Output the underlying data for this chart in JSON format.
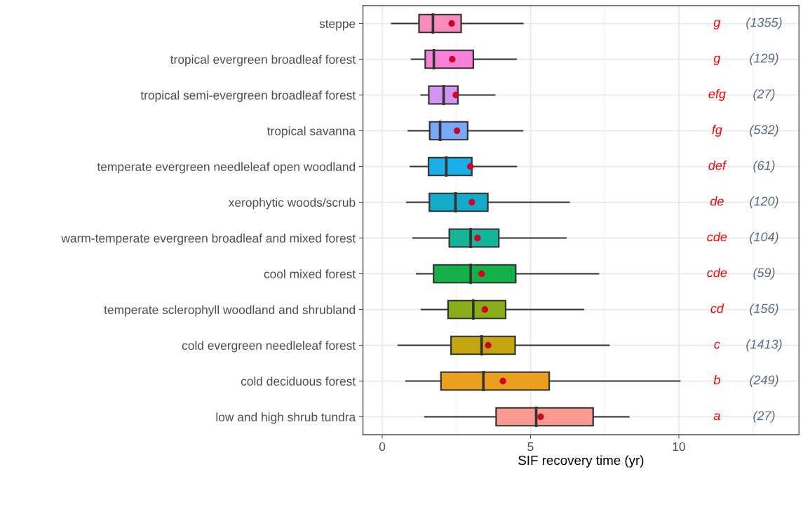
{
  "chart_data": {
    "type": "box",
    "orientation": "horizontal",
    "xlabel": "SIF recovery time (yr)",
    "categories": [
      "steppe",
      "tropical evergreen broadleaf forest",
      "tropical semi-evergreen broadleaf forest",
      "tropical savanna",
      "temperate evergreen needleleaf open woodland",
      "xerophytic woods/scrub",
      "warm-temperate evergreen broadleaf and mixed forest",
      "cool mixed forest",
      "temperate sclerophyll woodland and shrubland",
      "cold evergreen needleleaf forest",
      "cold deciduous forest",
      "low and high shrub tundra"
    ],
    "colors": [
      "#f98cbf",
      "#f681d6",
      "#d393f0",
      "#77a8fa",
      "#1aaee8",
      "#14abc9",
      "#14b498",
      "#13b04a",
      "#8aae1a",
      "#c4a512",
      "#eb9f1f",
      "#fb9a8f"
    ],
    "boxes": [
      {
        "low": 0.32,
        "q1": 1.24,
        "median": 1.71,
        "q3": 2.66,
        "high": 4.74,
        "mean": 2.34
      },
      {
        "low": 0.99,
        "q1": 1.45,
        "median": 1.74,
        "q3": 3.07,
        "high": 4.51,
        "mean": 2.36
      },
      {
        "low": 1.31,
        "q1": 1.57,
        "median": 2.07,
        "q3": 2.55,
        "high": 3.79,
        "mean": 2.48
      },
      {
        "low": 0.88,
        "q1": 1.6,
        "median": 1.95,
        "q3": 2.88,
        "high": 4.73,
        "mean": 2.52
      },
      {
        "low": 0.95,
        "q1": 1.56,
        "median": 2.16,
        "q3": 3.02,
        "high": 4.52,
        "mean": 2.97
      },
      {
        "low": 0.83,
        "q1": 1.59,
        "median": 2.47,
        "q3": 3.56,
        "high": 6.3,
        "mean": 3.02
      },
      {
        "low": 1.04,
        "q1": 2.26,
        "median": 2.98,
        "q3": 3.93,
        "high": 6.19,
        "mean": 3.21
      },
      {
        "low": 1.16,
        "q1": 1.73,
        "median": 2.98,
        "q3": 4.5,
        "high": 7.29,
        "mean": 3.35
      },
      {
        "low": 1.32,
        "q1": 2.22,
        "median": 3.07,
        "q3": 4.16,
        "high": 6.78,
        "mean": 3.46
      },
      {
        "low": 0.54,
        "q1": 2.32,
        "median": 3.35,
        "q3": 4.48,
        "high": 7.64,
        "mean": 3.57
      },
      {
        "low": 0.8,
        "q1": 1.98,
        "median": 3.41,
        "q3": 5.63,
        "high": 10.03,
        "mean": 4.07
      },
      {
        "low": 1.44,
        "q1": 3.84,
        "median": 5.19,
        "q3": 7.11,
        "high": 8.31,
        "mean": 5.34
      }
    ],
    "xlim": [
      -0.65,
      14.05
    ],
    "xticks": [
      0,
      5,
      10,
      {
        "value": 2.5,
        "label": null
      },
      {
        "value": 7.5,
        "label": null
      },
      {
        "value": 12.5,
        "label": null
      }
    ],
    "grid": true,
    "annotations": [
      "g",
      "(1355)",
      "g",
      "(129)",
      "efg",
      "(27)",
      "fg",
      "(532)",
      "def",
      "(61)",
      "de",
      "(120)",
      "cde",
      "(104)",
      "cde",
      "(59)",
      "cd",
      "(156)",
      "c",
      "(1413)",
      "b",
      "(249)",
      "a",
      "(27)"
    ]
  }
}
